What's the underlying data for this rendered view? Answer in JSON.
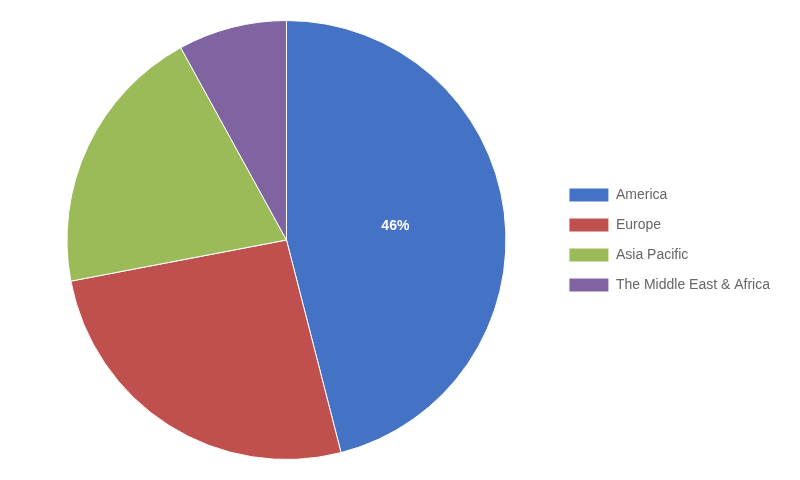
{
  "chart_data": {
    "type": "pie",
    "categories": [
      "America",
      "Europe",
      "Asia Pacific",
      "The Middle East & Africa"
    ],
    "values": [
      46,
      26,
      20,
      8
    ],
    "value_labels": [
      "46%",
      null,
      null,
      null
    ],
    "data_labels": true,
    "colors": [
      "#4472C4",
      "#C0504D",
      "#9BBB59",
      "#8064A2"
    ],
    "legend": "right"
  }
}
